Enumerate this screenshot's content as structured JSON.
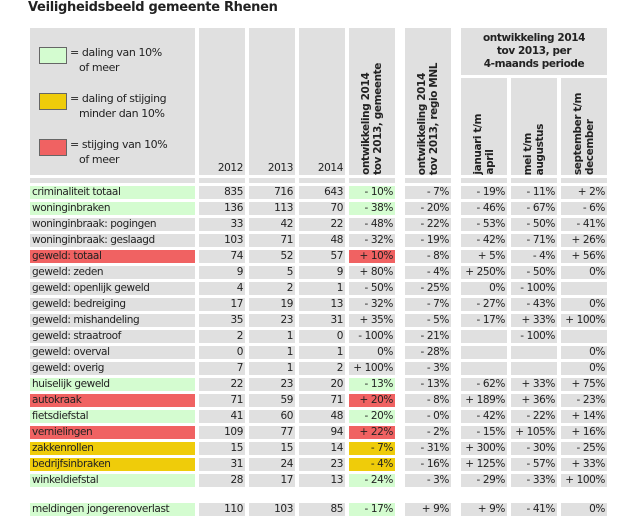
{
  "title": "Veiligheidsbeeld gemeente Rhenen",
  "legend": [
    {
      "color": "#d4fcd0",
      "text1": "= daling van 10%",
      "text2": "of meer"
    },
    {
      "color": "#efcc0a",
      "text1": "= daling of stijging",
      "text2": "minder dan 10%"
    },
    {
      "color": "#f06262",
      "text1": "= stijging van 10%",
      "text2": "of meer"
    }
  ],
  "headers": {
    "y2012": "2012",
    "y2013": "2013",
    "y2014": "2014",
    "gem1": "ontwikkeling 2014",
    "gem2": "tov 2013, gemeente",
    "reg1": "ontwikkeling 2014",
    "reg2": "tov 2013, regio MNL",
    "per1": "ontwikkeling 2014",
    "per2": "tov 2013, per",
    "per3": "4-maands periode",
    "jan1": "januari t/m",
    "jan2": "april",
    "mei1": "mei t/m",
    "mei2": "augustus",
    "sep1": "september t/m",
    "sep2": "december"
  },
  "colors": {
    "green": "#d4fcd0",
    "yellow": "#efcc0a",
    "red": "#f06262",
    "grey": "#e0e0e0"
  },
  "rows": [
    {
      "label": "criminaliteit totaal",
      "v": [
        "835",
        "716",
        "643",
        "- 10%",
        "- 7%",
        "- 19%",
        "- 11%",
        "+ 2%"
      ],
      "status": "green"
    },
    {
      "label": "woninginbraken",
      "v": [
        "136",
        "113",
        "70",
        "- 38%",
        "- 20%",
        "- 46%",
        "- 67%",
        "- 6%"
      ],
      "status": "green"
    },
    {
      "label": "woninginbraak: pogingen",
      "v": [
        "33",
        "42",
        "22",
        "- 48%",
        "- 22%",
        "- 53%",
        "- 50%",
        "- 41%"
      ],
      "status": ""
    },
    {
      "label": "woninginbraak: geslaagd",
      "v": [
        "103",
        "71",
        "48",
        "- 32%",
        "- 19%",
        "- 42%",
        "- 71%",
        "+ 26%"
      ],
      "status": ""
    },
    {
      "label": "geweld: totaal",
      "v": [
        "74",
        "52",
        "57",
        "+ 10%",
        "- 8%",
        "+ 5%",
        "- 4%",
        "+ 56%"
      ],
      "status": "red"
    },
    {
      "label": "geweld: zeden",
      "v": [
        "9",
        "5",
        "9",
        "+ 80%",
        "- 4%",
        "+ 250%",
        "- 50%",
        "0%"
      ],
      "status": ""
    },
    {
      "label": "geweld: openlijk geweld",
      "v": [
        "4",
        "2",
        "1",
        "- 50%",
        "- 25%",
        "0%",
        "- 100%",
        ""
      ],
      "status": ""
    },
    {
      "label": "geweld: bedreiging",
      "v": [
        "17",
        "19",
        "13",
        "- 32%",
        "- 7%",
        "- 27%",
        "- 43%",
        "0%"
      ],
      "status": ""
    },
    {
      "label": "geweld: mishandeling",
      "v": [
        "35",
        "23",
        "31",
        "+ 35%",
        "- 5%",
        "- 17%",
        "+ 33%",
        "+ 100%"
      ],
      "status": ""
    },
    {
      "label": "geweld: straatroof",
      "v": [
        "2",
        "1",
        "0",
        "- 100%",
        "- 21%",
        "",
        "- 100%",
        ""
      ],
      "status": ""
    },
    {
      "label": "geweld: overval",
      "v": [
        "0",
        "1",
        "1",
        "0%",
        "- 28%",
        "",
        "",
        "0%"
      ],
      "status": ""
    },
    {
      "label": "geweld: overig",
      "v": [
        "7",
        "1",
        "2",
        "+ 100%",
        "- 3%",
        "",
        "",
        "0%"
      ],
      "status": ""
    },
    {
      "label": "huiselijk geweld",
      "v": [
        "22",
        "23",
        "20",
        "- 13%",
        "- 13%",
        "- 62%",
        "+ 33%",
        "+ 75%"
      ],
      "status": "green"
    },
    {
      "label": "autokraak",
      "v": [
        "71",
        "59",
        "71",
        "+ 20%",
        "- 8%",
        "+ 189%",
        "+ 36%",
        "- 23%"
      ],
      "status": "red"
    },
    {
      "label": "fietsdiefstal",
      "v": [
        "41",
        "60",
        "48",
        "- 20%",
        "- 0%",
        "- 42%",
        "- 22%",
        "+ 14%"
      ],
      "status": "green"
    },
    {
      "label": "vernielingen",
      "v": [
        "109",
        "77",
        "94",
        "+ 22%",
        "- 2%",
        "- 15%",
        "+ 105%",
        "+ 16%"
      ],
      "status": "red"
    },
    {
      "label": "zakkenrollen",
      "v": [
        "15",
        "15",
        "14",
        "- 7%",
        "- 31%",
        "+ 300%",
        "- 30%",
        "- 25%"
      ],
      "status": "yellow"
    },
    {
      "label": "bedrijfsinbraken",
      "v": [
        "31",
        "24",
        "23",
        "- 4%",
        "- 16%",
        "+ 125%",
        "- 57%",
        "+ 33%"
      ],
      "status": "yellow"
    },
    {
      "label": "winkeldiefstal",
      "v": [
        "28",
        "17",
        "13",
        "- 24%",
        "- 3%",
        "- 29%",
        "- 33%",
        "+ 100%"
      ],
      "status": "green"
    }
  ],
  "extra_row": {
    "label": "meldingen jongerenoverlast",
    "v": [
      "110",
      "103",
      "85",
      "- 17%",
      "+ 9%",
      "+ 9%",
      "- 41%",
      "0%"
    ],
    "status": "green"
  }
}
